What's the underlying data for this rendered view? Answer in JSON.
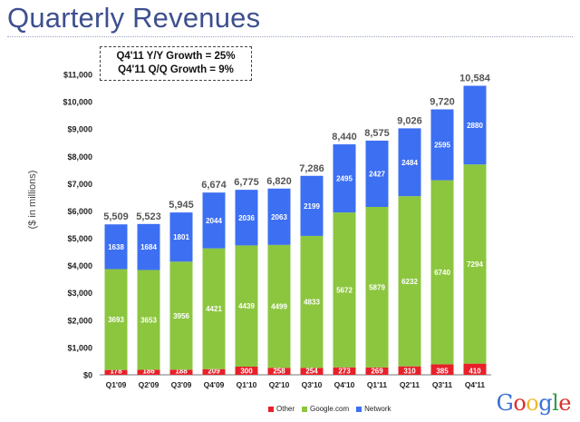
{
  "page": {
    "title": "Quarterly Revenues",
    "growth_lines": [
      "Q4'11 Y/Y Growth = 25%",
      "Q4'11 Q/Q Growth = 9%"
    ],
    "logo_letters": [
      "G",
      "o",
      "o",
      "g",
      "l",
      "e"
    ]
  },
  "colors": {
    "other": "#e8202a",
    "google": "#8cc63f",
    "network": "#3d6ff2",
    "logo": [
      "#3b6fd8",
      "#d8312b",
      "#f2b92a",
      "#3b6fd8",
      "#2e9e45",
      "#d8312b"
    ]
  },
  "chart_data": {
    "type": "bar",
    "stacked": true,
    "categories": [
      "Q1'09",
      "Q2'09",
      "Q3'09",
      "Q4'09",
      "Q1'10",
      "Q2'10",
      "Q3'10",
      "Q4'10",
      "Q1'11",
      "Q2'11",
      "Q3'11",
      "Q4'11"
    ],
    "series": [
      {
        "name": "Other",
        "values": [
          178,
          186,
          188,
          209,
          300,
          258,
          254,
          273,
          269,
          310,
          385,
          410
        ]
      },
      {
        "name": "Google.com",
        "values": [
          3693,
          3653,
          3956,
          4421,
          4439,
          4499,
          4833,
          5672,
          5879,
          6232,
          6740,
          7294
        ]
      },
      {
        "name": "Network",
        "values": [
          1638,
          1684,
          1801,
          2044,
          2036,
          2063,
          2199,
          2495,
          2427,
          2484,
          2595,
          2880
        ]
      }
    ],
    "totals": [
      "5,509",
      "5,523",
      "5,945",
      "6,674",
      "6,775",
      "6,820",
      "7,286",
      "8,440",
      "8,575",
      "9,026",
      "9,720",
      "10,584"
    ],
    "total_values": [
      5509,
      5523,
      5945,
      6674,
      6775,
      6820,
      7286,
      8440,
      8575,
      9026,
      9720,
      10584
    ],
    "ylabel": "($ in millions)",
    "ylim": [
      0,
      11000
    ],
    "yticks": [
      "$0",
      "$1,000",
      "$2,000",
      "$3,000",
      "$4,000",
      "$5,000",
      "$6,000",
      "$7,000",
      "$8,000",
      "$9,000",
      "$10,000",
      "$11,000"
    ],
    "ytick_values": [
      0,
      1000,
      2000,
      3000,
      4000,
      5000,
      6000,
      7000,
      8000,
      9000,
      10000,
      11000
    ],
    "legend": [
      "Other",
      "Google.com",
      "Network"
    ],
    "legend_position": "bottom",
    "grid": false
  }
}
